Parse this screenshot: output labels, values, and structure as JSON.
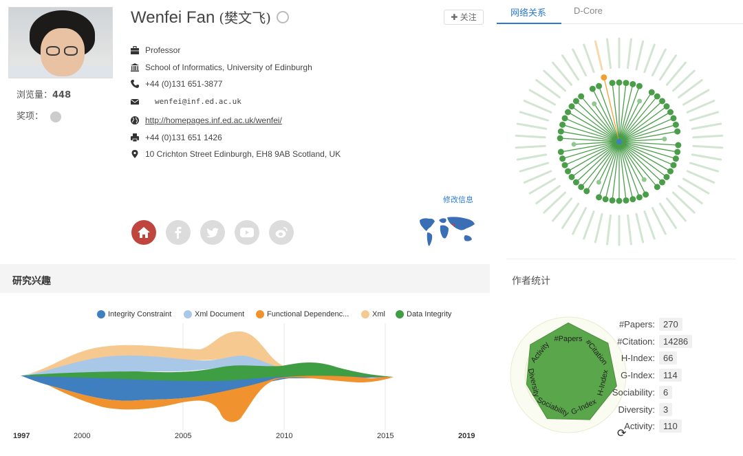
{
  "profile": {
    "name": "Wenfei Fan",
    "name_cn": "(樊文飞)",
    "views_label": "浏览量：",
    "views_value": "448",
    "awards_label": "奖项：",
    "follow_label": "关注",
    "edit_label": "修改信息",
    "position": "Professor",
    "affiliation": "School of Informatics, University of Edinburgh",
    "phone": "+44 (0)131 651-3877",
    "email": "wenfei@inf.ed.ac.uk",
    "homepage": "http://homepages.inf.ed.ac.uk/wenfei/",
    "fax": "+44 (0)131 651 1426",
    "address": "10 Crichton Street Edinburgh, EH8 9AB Scotland, UK"
  },
  "research": {
    "title": "研究兴趣",
    "legend": [
      {
        "name": "Integrity Constraint",
        "color": "#3f7fc0"
      },
      {
        "name": "Xml Document",
        "color": "#a9c8e8"
      },
      {
        "name": "Functional Dependenc...",
        "color": "#f0922e"
      },
      {
        "name": "Xml",
        "color": "#f5c990"
      },
      {
        "name": "Data Integrity",
        "color": "#3f9d44"
      }
    ],
    "years": [
      "1997",
      "2000",
      "2005",
      "2010",
      "2015",
      "2019"
    ]
  },
  "tabs": {
    "network": "网络关系",
    "dcore": "D-Core"
  },
  "stats": {
    "title": "作者统计",
    "radar_labels": [
      "#Papers",
      "#Citation",
      "H-Index",
      "G-Index",
      "Sociability",
      "Diversity",
      "Activity"
    ],
    "items": [
      {
        "label": "#Papers:",
        "value": "270"
      },
      {
        "label": "#Citation:",
        "value": "14286"
      },
      {
        "label": "H-Index:",
        "value": "66"
      },
      {
        "label": "G-Index:",
        "value": "114"
      },
      {
        "label": "Sociability:",
        "value": "6"
      },
      {
        "label": "Diversity:",
        "value": "3"
      },
      {
        "label": "Activity:",
        "value": "110"
      }
    ]
  },
  "colors": {
    "accent": "#2a7ad2",
    "network_green": "#4a9e4a",
    "network_orange": "#f0a030",
    "radar_green": "#5aa64a"
  }
}
